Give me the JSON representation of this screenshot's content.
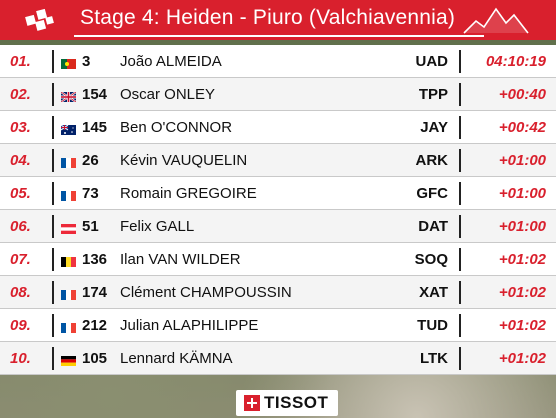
{
  "header": {
    "title": "Stage 4: Heiden - Piuro (Valchiavennia)",
    "accent_color": "#d9202d"
  },
  "rows": [
    {
      "pos": "01.",
      "flag": "portugal-flag",
      "num": "3",
      "name": "João ALMEIDA",
      "team": "UAD",
      "time": "04:10:19"
    },
    {
      "pos": "02.",
      "flag": "uk-flag",
      "num": "154",
      "name": "Oscar ONLEY",
      "team": "TPP",
      "time": "+00:40"
    },
    {
      "pos": "03.",
      "flag": "australia-flag",
      "num": "145",
      "name": "Ben O'CONNOR",
      "team": "JAY",
      "time": "+00:42"
    },
    {
      "pos": "04.",
      "flag": "france-flag",
      "num": "26",
      "name": "Kévin VAUQUELIN",
      "team": "ARK",
      "time": "+01:00"
    },
    {
      "pos": "05.",
      "flag": "france-flag",
      "num": "73",
      "name": "Romain GREGOIRE",
      "team": "GFC",
      "time": "+01:00"
    },
    {
      "pos": "06.",
      "flag": "austria-flag",
      "num": "51",
      "name": "Felix GALL",
      "team": "DAT",
      "time": "+01:00"
    },
    {
      "pos": "07.",
      "flag": "belgium-flag",
      "num": "136",
      "name": "Ilan VAN WILDER",
      "team": "SOQ",
      "time": "+01:02"
    },
    {
      "pos": "08.",
      "flag": "france-flag",
      "num": "174",
      "name": "Clément CHAMPOUSSIN",
      "team": "XAT",
      "time": "+01:02"
    },
    {
      "pos": "09.",
      "flag": "france-flag",
      "num": "212",
      "name": "Julian ALAPHILIPPE",
      "team": "TUD",
      "time": "+01:02"
    },
    {
      "pos": "10.",
      "flag": "germany-flag",
      "num": "105",
      "name": "Lennard KÄMNA",
      "team": "LTK",
      "time": "+01:02"
    }
  ],
  "sponsor": {
    "name": "TISSOT"
  }
}
